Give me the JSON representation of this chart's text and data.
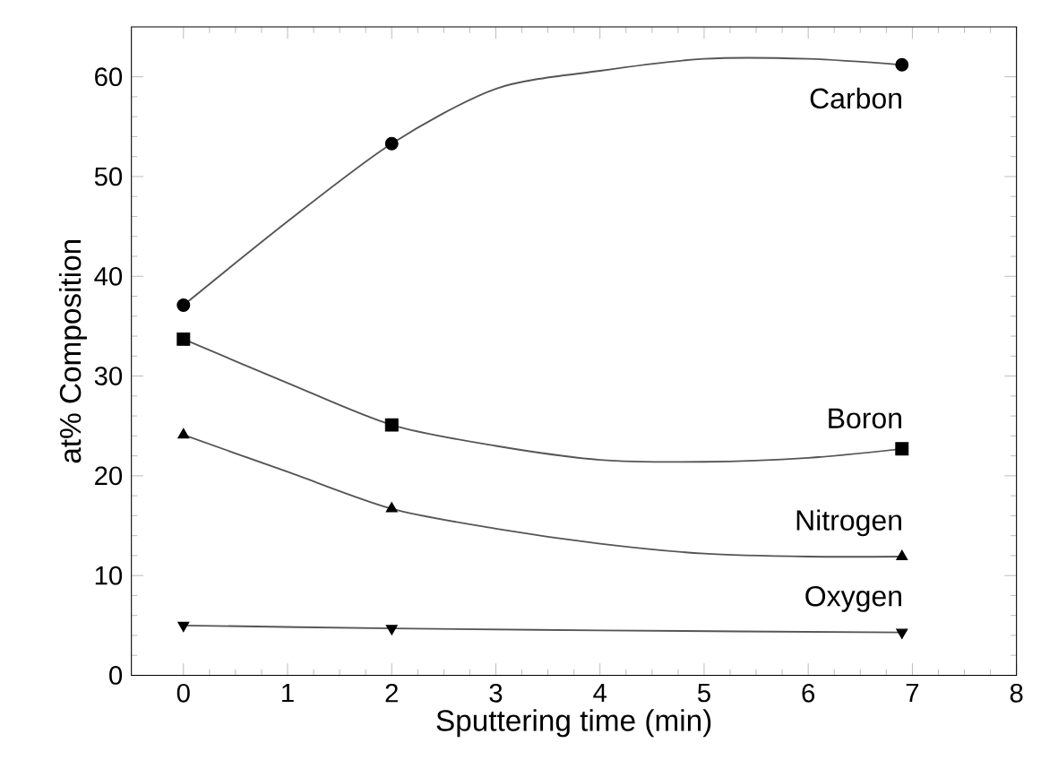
{
  "chart_data": {
    "type": "scatter",
    "xlabel": "Sputtering time (min)",
    "ylabel": "at% Composition",
    "xlim": [
      -0.5,
      8
    ],
    "ylim": [
      0,
      65
    ],
    "xticks": [
      0,
      1,
      2,
      3,
      4,
      5,
      6,
      7,
      8
    ],
    "yticks": [
      0,
      10,
      20,
      30,
      40,
      50,
      60
    ],
    "grid": false,
    "legend": false,
    "series": [
      {
        "name": "Carbon",
        "color": "#000000",
        "marker": "circle",
        "x": [
          0,
          2,
          6.9
        ],
        "values": [
          37.1,
          53.3,
          61.2
        ]
      },
      {
        "name": "Boron",
        "color": "#000000",
        "marker": "square",
        "x": [
          0,
          2,
          6.9
        ],
        "values": [
          33.7,
          25.1,
          22.7
        ]
      },
      {
        "name": "Nitrogen",
        "color": "#000000",
        "marker": "triangle",
        "x": [
          0,
          2,
          6.9
        ],
        "values": [
          24.1,
          16.7,
          11.9
        ]
      },
      {
        "name": "Oxygen",
        "color": "#000000",
        "marker": "triangle down",
        "x": [
          0,
          2,
          6.9
        ],
        "values": [
          5.0,
          4.7,
          4.3
        ]
      },
      {
        "type": "line",
        "color": "#555555",
        "marker": "none",
        "x": [
          0,
          1,
          2,
          3,
          4,
          5,
          6,
          6.9
        ],
        "values": [
          37.1,
          45.5,
          53.3,
          58.8,
          60.6,
          61.8,
          61.8,
          61.2
        ]
      },
      {
        "type": "line",
        "color": "#555555",
        "marker": "none",
        "x": [
          0,
          1,
          2,
          3,
          4,
          5,
          6,
          6.9
        ],
        "values": [
          33.7,
          29.3,
          25.1,
          23.0,
          21.6,
          21.4,
          21.8,
          22.7
        ]
      },
      {
        "type": "line",
        "color": "#555555",
        "marker": "none",
        "x": [
          0,
          1,
          2,
          3,
          4,
          5,
          6,
          6.9
        ],
        "values": [
          24.1,
          20.4,
          16.7,
          14.7,
          13.2,
          12.2,
          11.9,
          11.9
        ]
      },
      {
        "type": "line",
        "color": "#555555",
        "marker": "none",
        "x": [
          0,
          2,
          4,
          6.9
        ],
        "values": [
          5.0,
          4.7,
          4.5,
          4.3
        ]
      }
    ]
  }
}
